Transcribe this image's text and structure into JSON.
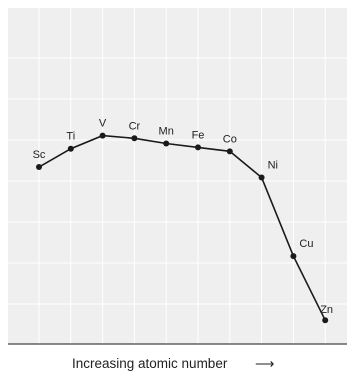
{
  "chart_data": {
    "type": "line",
    "title": "",
    "xlabel": "Increasing atomic number",
    "xlabel_arrow": "⟶",
    "ylabel": "",
    "categories": [
      "Sc",
      "Ti",
      "V",
      "Cr",
      "Mn",
      "Fe",
      "Co",
      "Ni",
      "Cu",
      "Zn"
    ],
    "values": [
      6.3,
      7.0,
      7.5,
      7.4,
      7.2,
      7.05,
      6.9,
      5.9,
      2.9,
      0.45
    ],
    "ylim": [
      0,
      11
    ],
    "grid": true,
    "legend": "none",
    "colors": {
      "plot_background": "#efefef",
      "grid": "#ffffff",
      "line": "#1a1a1a",
      "point": "#1a1a1a",
      "axis": "#444444"
    }
  }
}
